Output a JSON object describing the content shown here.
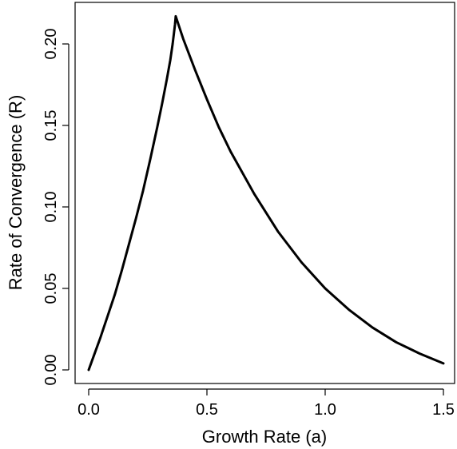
{
  "chart_data": {
    "type": "line",
    "title": "",
    "xlabel": "Growth Rate (a)",
    "ylabel": "Rate of Convergence (R)",
    "xlim": [
      -0.05,
      1.55
    ],
    "ylim": [
      -0.01,
      0.225
    ],
    "x_ticks": [
      0.0,
      0.5,
      1.0,
      1.5
    ],
    "x_tick_labels": [
      "0.0",
      "0.5",
      "1.0",
      "1.5"
    ],
    "y_ticks": [
      0.0,
      0.05,
      0.1,
      0.15,
      0.2
    ],
    "y_tick_labels": [
      "0.00",
      "0.05",
      "0.10",
      "0.15",
      "0.20"
    ],
    "grid": false,
    "legend": "none",
    "series": [
      {
        "color": "#000000",
        "x": [
          0.0,
          0.02,
          0.05,
          0.08,
          0.11,
          0.14,
          0.17,
          0.2,
          0.23,
          0.26,
          0.29,
          0.31,
          0.33,
          0.345,
          0.355,
          0.36,
          0.365,
          0.368,
          0.4,
          0.45,
          0.5,
          0.55,
          0.6,
          0.7,
          0.8,
          0.9,
          1.0,
          1.1,
          1.2,
          1.3,
          1.4,
          1.5
        ],
        "y": [
          0.0,
          0.008,
          0.02,
          0.033,
          0.046,
          0.061,
          0.077,
          0.093,
          0.11,
          0.129,
          0.149,
          0.163,
          0.178,
          0.19,
          0.2,
          0.206,
          0.212,
          0.217,
          0.203,
          0.184,
          0.166,
          0.149,
          0.134,
          0.108,
          0.085,
          0.066,
          0.05,
          0.037,
          0.026,
          0.017,
          0.01,
          0.004
        ]
      }
    ]
  }
}
